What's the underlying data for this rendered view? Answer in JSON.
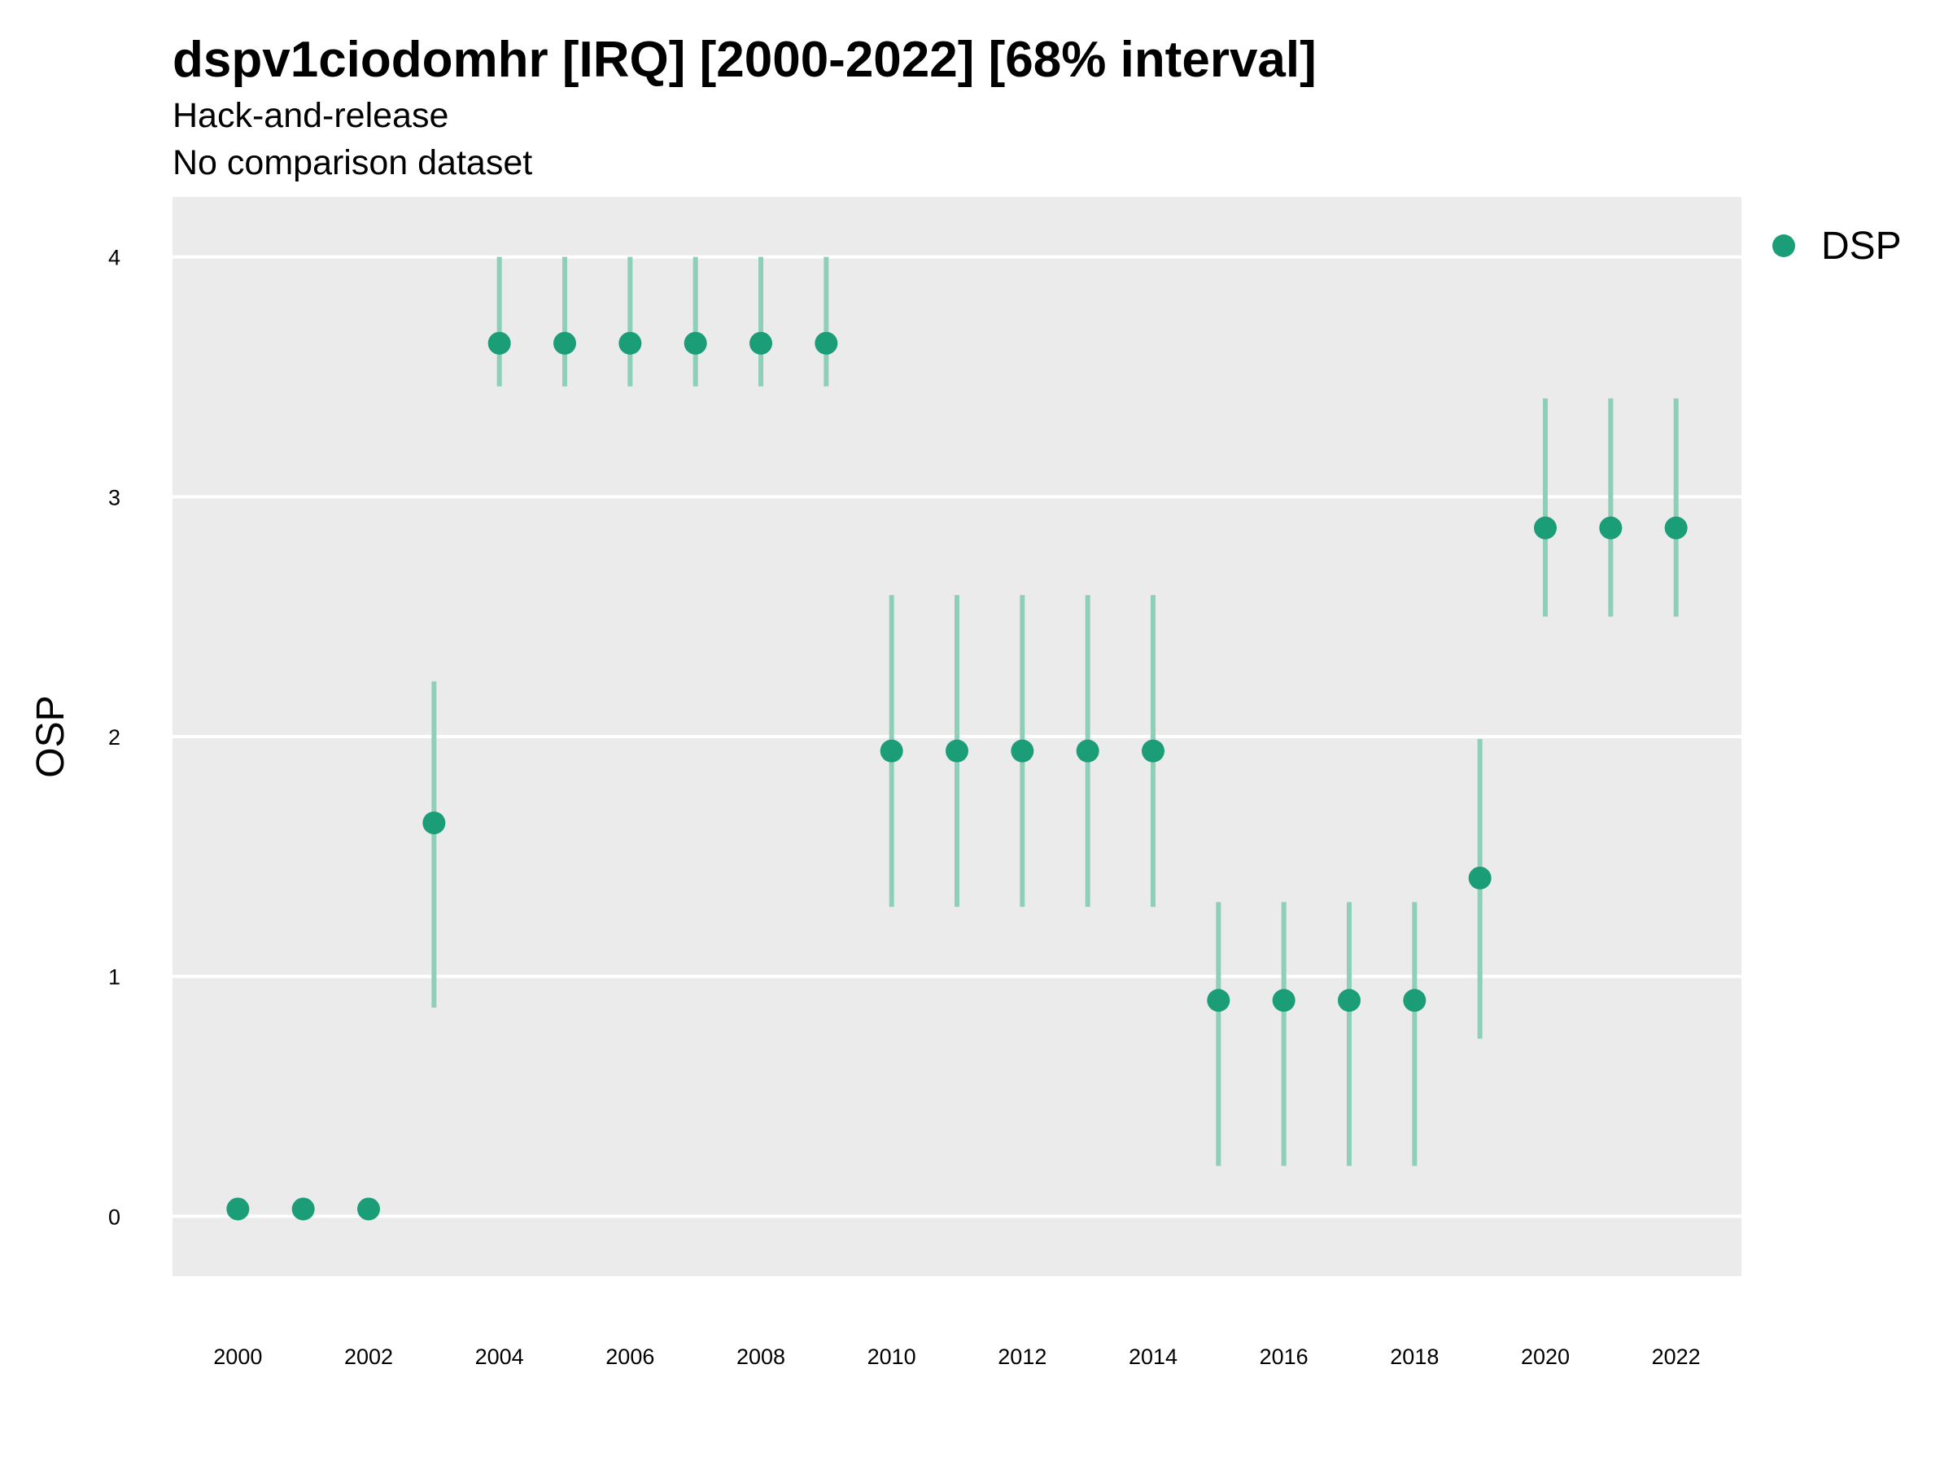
{
  "chart_data": {
    "type": "scatter",
    "title": "dspv1ciodomhr [IRQ] [2000-2022] [68% interval]",
    "subtitle": [
      "Hack-and-release",
      "No comparison dataset"
    ],
    "xlabel": "",
    "ylabel": "OSP",
    "xlim": [
      1999,
      2023
    ],
    "ylim": [
      -0.25,
      4.25
    ],
    "x_ticks": [
      2000,
      2002,
      2004,
      2006,
      2008,
      2010,
      2012,
      2014,
      2016,
      2018,
      2020,
      2022
    ],
    "y_ticks": [
      0,
      1,
      2,
      3,
      4
    ],
    "grid": true,
    "legend": {
      "placement": "top-right",
      "entries": [
        "DSP"
      ]
    },
    "colors": {
      "point": "#1b9e77",
      "interval": "#8ecfb8",
      "panel": "#ebebeb",
      "grid": "#ffffff"
    },
    "series": [
      {
        "name": "DSP",
        "x": [
          2000,
          2001,
          2002,
          2003,
          2004,
          2005,
          2006,
          2007,
          2008,
          2009,
          2010,
          2011,
          2012,
          2013,
          2014,
          2015,
          2016,
          2017,
          2018,
          2019,
          2020,
          2021,
          2022
        ],
        "y": [
          0.03,
          0.03,
          0.03,
          1.64,
          3.64,
          3.64,
          3.64,
          3.64,
          3.64,
          3.64,
          1.94,
          1.94,
          1.94,
          1.94,
          1.94,
          0.9,
          0.9,
          0.9,
          0.9,
          1.41,
          2.87,
          2.87,
          2.87
        ],
        "lower": [
          null,
          null,
          null,
          0.87,
          3.46,
          3.46,
          3.46,
          3.46,
          3.46,
          3.46,
          1.29,
          1.29,
          1.29,
          1.29,
          1.29,
          0.21,
          0.21,
          0.21,
          0.21,
          0.74,
          2.5,
          2.5,
          2.5
        ],
        "upper": [
          null,
          null,
          null,
          2.23,
          4.0,
          4.0,
          4.0,
          4.0,
          4.0,
          4.0,
          2.59,
          2.59,
          2.59,
          2.59,
          2.59,
          1.31,
          1.31,
          1.31,
          1.31,
          1.99,
          3.41,
          3.41,
          3.41
        ]
      }
    ]
  }
}
